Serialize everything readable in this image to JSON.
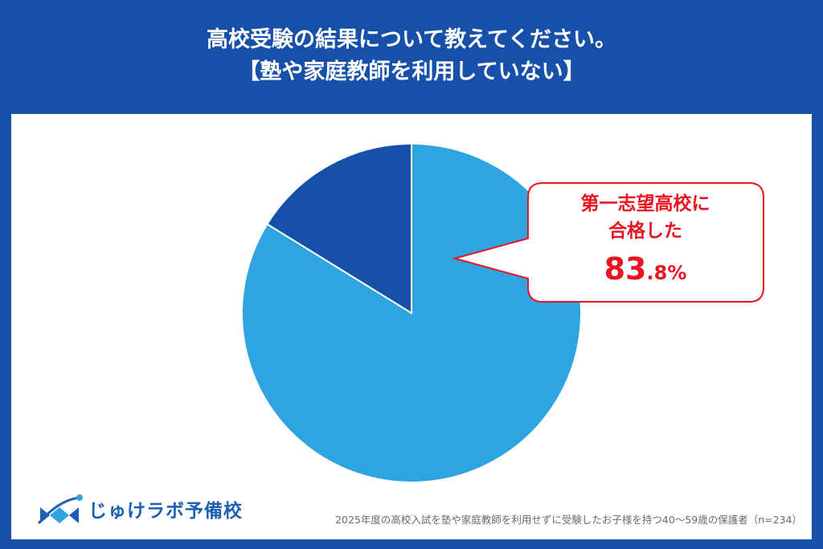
{
  "header": {
    "title_line1": "高校受験の結果について教えてください。",
    "title_line2": "【塾や家庭教師を利用していない】"
  },
  "chart_data": {
    "type": "pie",
    "title": "高校受験の結果について教えてください。【塾や家庭教師を利用していない】",
    "slices": [
      {
        "label": "第一志望高校に合格した",
        "value": 83.8,
        "color": "#2ea5e0"
      },
      {
        "label": "",
        "value": 16.2,
        "color": "#1650a8"
      }
    ],
    "start_angle_deg": 0,
    "direction": "clockwise"
  },
  "callout": {
    "line1": "第一志望高校に",
    "line2": "合格した",
    "value_int": "83",
    "value_dec": ".8%",
    "color": "#e8141f"
  },
  "logo": {
    "text": "じゅけラボ予備校",
    "icon": "book-logo-icon",
    "color": "#1e5fb6"
  },
  "footnote": "2025年度の高校入試を塾や家庭教師を利用せずに受験したお子様を持つ40〜59歳の保護者（n=234）",
  "colors": {
    "background": "#1650a8",
    "panel": "#ffffff"
  }
}
